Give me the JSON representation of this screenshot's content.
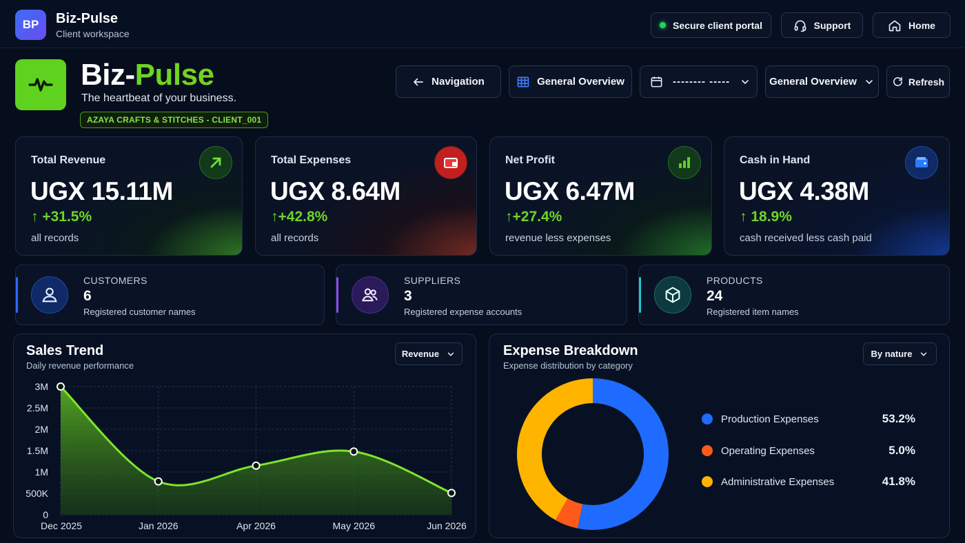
{
  "app": {
    "badge": "BP",
    "name": "Biz-Pulse",
    "subtitle": "Client workspace"
  },
  "topbar": {
    "secure_label": "Secure client portal",
    "support_label": "Support",
    "home_label": "Home"
  },
  "hero": {
    "title_part1": "Biz-",
    "title_part2": "Pulse",
    "tagline": "The heartbeat of your business.",
    "client_tag": "AZAYA CRAFTS & STITCHES - CLIENT_001"
  },
  "controls": {
    "navigation_label": "Navigation",
    "view_label": "General Overview",
    "date_value": "--------  -----",
    "overview_select": "General Overview",
    "refresh_label": "Refresh"
  },
  "kpis": [
    {
      "label": "Total Revenue",
      "value": "UGX 15.11M",
      "change": "+31.5%",
      "note": "all records",
      "icon": "trend-up-icon"
    },
    {
      "label": "Total Expenses",
      "value": "UGX 8.64M",
      "change": "+42.8%",
      "note": "all records",
      "icon": "wallet-icon"
    },
    {
      "label": "Net Profit",
      "value": "UGX 6.47M",
      "change": "+27.4%",
      "note": "revenue less expenses",
      "icon": "bar-chart-icon"
    },
    {
      "label": "Cash in Hand",
      "value": "UGX 4.38M",
      "change": "18.9%",
      "note": "cash received less cash paid",
      "icon": "wallet-card-icon"
    }
  ],
  "entities": [
    {
      "label": "CUSTOMERS",
      "value": "6",
      "note": "Registered customer names",
      "icon": "user-icon"
    },
    {
      "label": "SUPPLIERS",
      "value": "3",
      "note": "Registered expense accounts",
      "icon": "users-icon"
    },
    {
      "label": "PRODUCTS",
      "value": "24",
      "note": "Registered item names",
      "icon": "box-icon"
    }
  ],
  "sales_trend": {
    "title": "Sales Trend",
    "subtitle": "Daily revenue performance",
    "dropdown": "Revenue"
  },
  "expense_breakdown": {
    "title": "Expense Breakdown",
    "subtitle": "Expense distribution by category",
    "dropdown": "By nature"
  },
  "colors": {
    "accent_green": "#6fd421",
    "production": "#1f6bff",
    "operating": "#ff5a1a",
    "administrative": "#ffb400"
  },
  "chart_data": [
    {
      "type": "area",
      "title": "Sales Trend",
      "x_ticks": [
        "Dec 2025",
        "Jan 2026",
        "Apr 2026",
        "May 2026",
        "Jun 2026"
      ],
      "y_ticks": [
        "3M",
        "2.5M",
        "2M",
        "1.5M",
        "1M",
        "500K",
        "0"
      ],
      "ylim": [
        0,
        3000000
      ],
      "series": [
        {
          "values": [
            3000000,
            780000,
            1150000,
            1480000,
            510000
          ]
        }
      ],
      "grid": true
    },
    {
      "type": "pie",
      "title": "Expense Breakdown",
      "slices": [
        {
          "name": "Production Expenses",
          "value": 53.2,
          "label": "53.2%"
        },
        {
          "name": "Operating Expenses",
          "value": 5.0,
          "label": "5.0%"
        },
        {
          "name": "Administrative Expenses",
          "value": 41.8,
          "label": "41.8%"
        }
      ],
      "legend": "right"
    }
  ]
}
